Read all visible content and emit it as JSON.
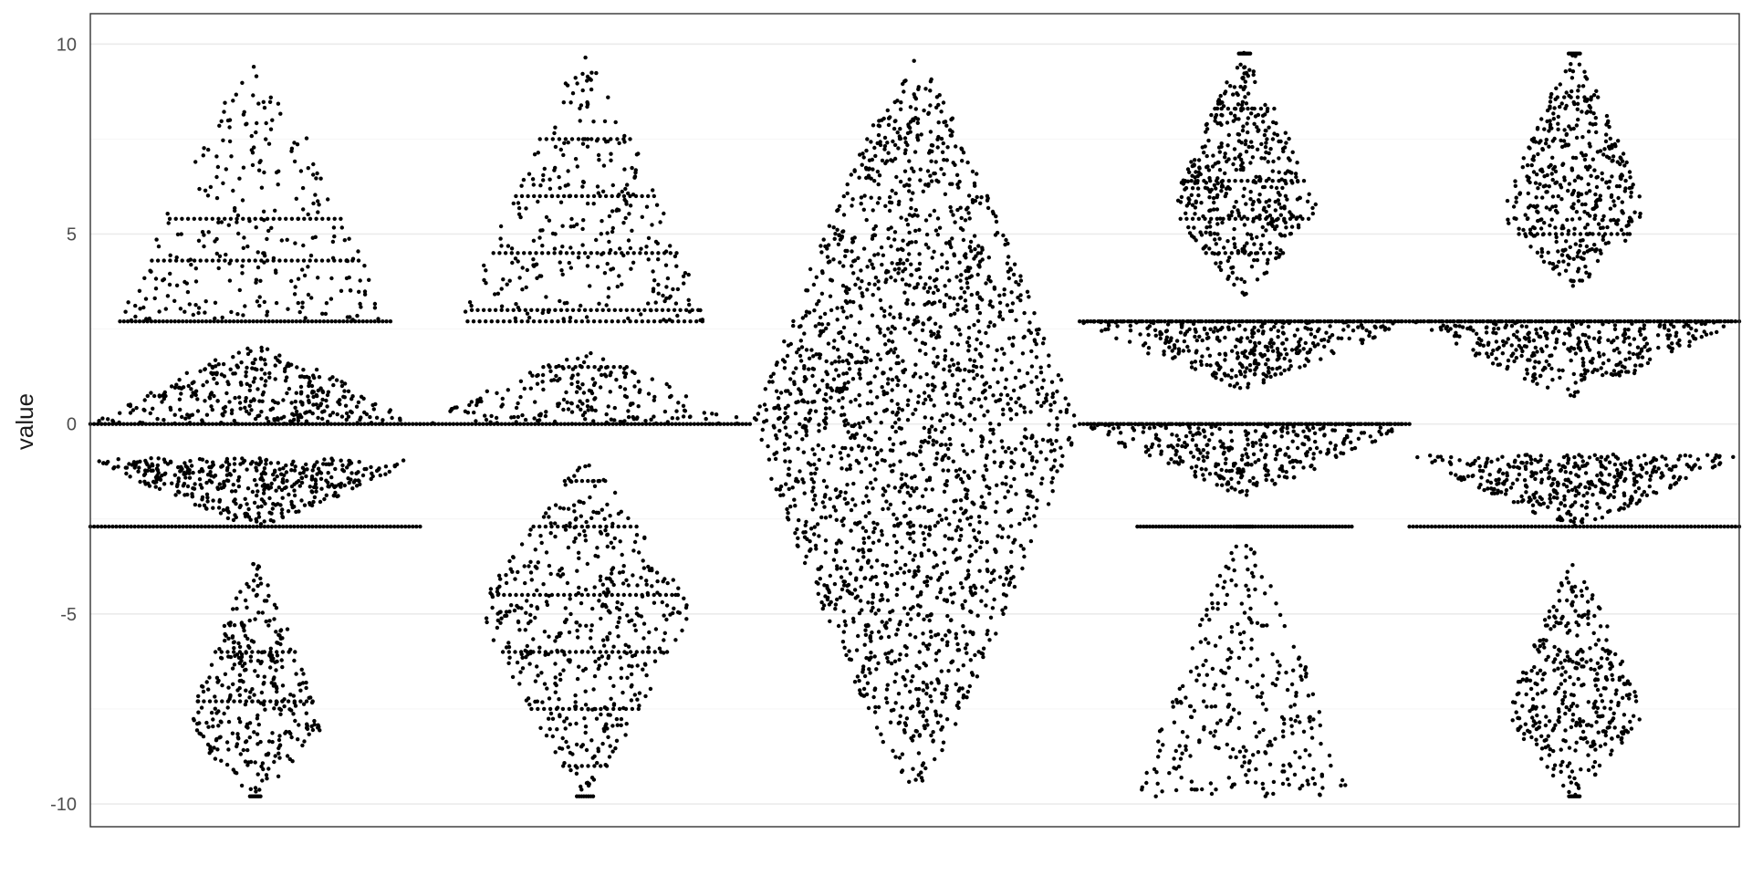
{
  "chart_data": {
    "type": "scatter",
    "subtype": "beeswarm",
    "title": "",
    "xlabel": "",
    "ylabel": "value",
    "ylim": [
      -10.6,
      10.8
    ],
    "yticks": [
      -10,
      -5,
      0,
      5,
      10
    ],
    "ytick_labels": [
      "-10",
      "-5",
      "0",
      "5",
      "10"
    ],
    "grid": true,
    "point_color": "#000000",
    "groups": [
      {
        "clusters": [
          {
            "range": [
              -9.8,
              -3.6
            ],
            "n": 330,
            "peak": 0.3,
            "maxw": 0.42
          },
          {
            "range": [
              -2.7,
              -0.9
            ],
            "n": 420,
            "peak": 1.0,
            "maxw": 1.0,
            "flat": "bottom",
            "line_n": 90
          },
          {
            "range": [
              0.0,
              2.1
            ],
            "n": 330,
            "peak": 0.0,
            "maxw": 1.0,
            "flat": "bottom",
            "line_n": 90
          },
          {
            "range": [
              2.7,
              9.8
            ],
            "n": 260,
            "peak": 0.0,
            "maxw": 0.82,
            "flat": "bottom",
            "line_n": 70
          }
        ],
        "bands": [
          -9.8,
          -7.3,
          -6.0,
          4.3,
          5.4
        ]
      },
      {
        "clusters": [
          {
            "range": [
              -9.8,
              -0.9
            ],
            "n": 480,
            "peak": 0.55,
            "maxw": 0.65
          },
          {
            "range": [
              0.0,
              1.9
            ],
            "n": 200,
            "peak": 0.0,
            "maxw": 1.0,
            "flat": "bottom",
            "line_n": 90
          },
          {
            "range": [
              2.7,
              9.8
            ],
            "n": 280,
            "peak": 0.0,
            "maxw": 0.75
          }
        ],
        "bands": [
          -9.8,
          -9.0,
          -7.5,
          -6.0,
          -4.5,
          -2.7,
          -1.5,
          1.5,
          2.7,
          3.0,
          4.5,
          6.0,
          7.5
        ]
      },
      {
        "clusters": [
          {
            "range": [
              -9.8,
              9.8
            ],
            "n": 2100,
            "peak": 0.5,
            "maxw": 1.0
          }
        ],
        "bands": []
      },
      {
        "clusters": [
          {
            "range": [
              -9.8,
              -2.7
            ],
            "n": 300,
            "peak": 0.0,
            "maxw": 0.65,
            "flat": "top",
            "line_n": 70
          },
          {
            "range": [
              -1.9,
              0.0
            ],
            "n": 320,
            "peak": 1.0,
            "maxw": 1.0,
            "flat": "top",
            "line_n": 90
          },
          {
            "range": [
              0.9,
              2.7
            ],
            "n": 330,
            "peak": 1.0,
            "maxw": 1.0,
            "flat": "top",
            "line_n": 90
          },
          {
            "range": [
              3.4,
              9.8
            ],
            "n": 430,
            "peak": 0.35,
            "maxw": 0.45
          }
        ],
        "bands": [
          -2.7,
          0.0,
          2.7,
          4.5,
          5.4,
          6.4,
          8.3,
          9.75
        ]
      },
      {
        "clusters": [
          {
            "range": [
              -9.8,
              -3.6
            ],
            "n": 380,
            "peak": 0.35,
            "maxw": 0.42
          },
          {
            "range": [
              -2.7,
              -0.8
            ],
            "n": 400,
            "peak": 1.0,
            "maxw": 1.0,
            "flat": "bottom",
            "line_n": 90
          },
          {
            "range": [
              0.7,
              2.7
            ],
            "n": 330,
            "peak": 1.0,
            "maxw": 1.0,
            "flat": "top",
            "line_n": 90
          },
          {
            "range": [
              3.6,
              9.8
            ],
            "n": 430,
            "peak": 0.3,
            "maxw": 0.45
          }
        ],
        "bands": [
          -9.8,
          2.7,
          5.0,
          8.6,
          9.75
        ]
      }
    ]
  }
}
